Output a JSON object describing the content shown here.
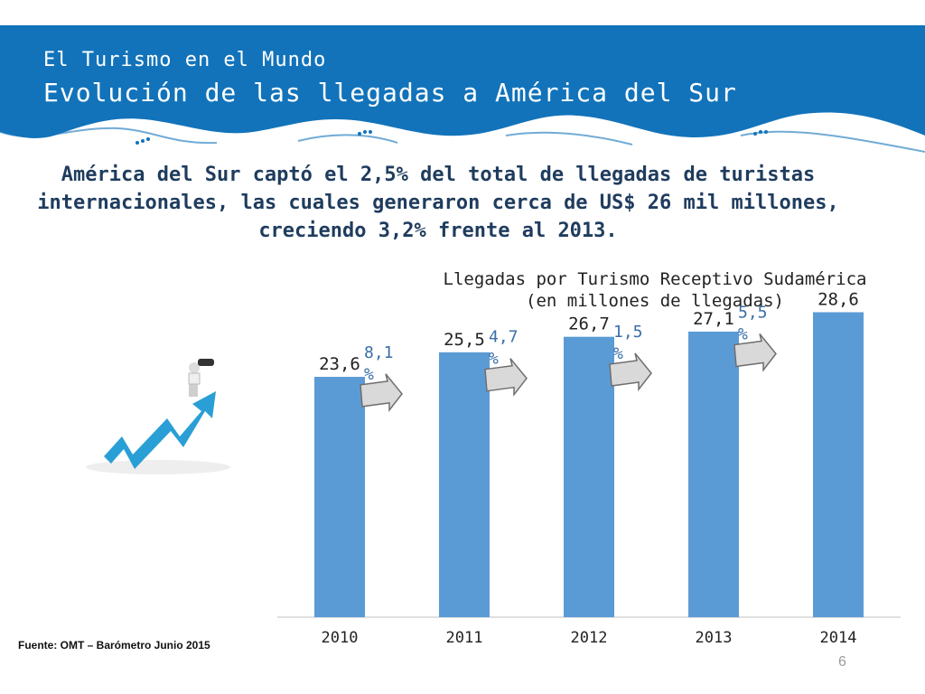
{
  "header": {
    "subtitle": "El Turismo en el Mundo",
    "title": "Evolución de las llegadas a América del Sur"
  },
  "headline": "América del Sur captó el 2,5% del total de llegadas de turistas internacionales, las cuales generaron cerca de US$ 26 mil millones, creciendo 3,2% frente al 2013.",
  "chart_data": {
    "type": "bar",
    "title": "Llegadas por Turismo Receptivo Sudamérica",
    "subtitle": "(en millones de llegadas)",
    "categories": [
      "2010",
      "2011",
      "2012",
      "2013",
      "2014"
    ],
    "values": [
      23.6,
      25.5,
      26.7,
      27.1,
      28.6
    ],
    "value_labels": [
      "23,6",
      "25,5",
      "26,7",
      "27,1",
      "28,6"
    ],
    "growth_labels": [
      "8,1 %",
      "4,7 %",
      "1,5 %",
      "5,5 %"
    ],
    "ylim": [
      0,
      30
    ],
    "grid": false,
    "bar_color": "#5b9bd5",
    "growth_label_color": "#3a6fa8",
    "arrow_color": "#d9d9d9"
  },
  "footer": {
    "source": "Fuente: OMT – Barómetro Junio 2015",
    "page_number": "6"
  },
  "colors": {
    "header_blue": "#1273ba",
    "headline": "#1f3c5e",
    "trend_arrow": "#2a9fd6"
  },
  "icons": [
    "binoculars-person-icon",
    "trend-arrow-icon"
  ]
}
